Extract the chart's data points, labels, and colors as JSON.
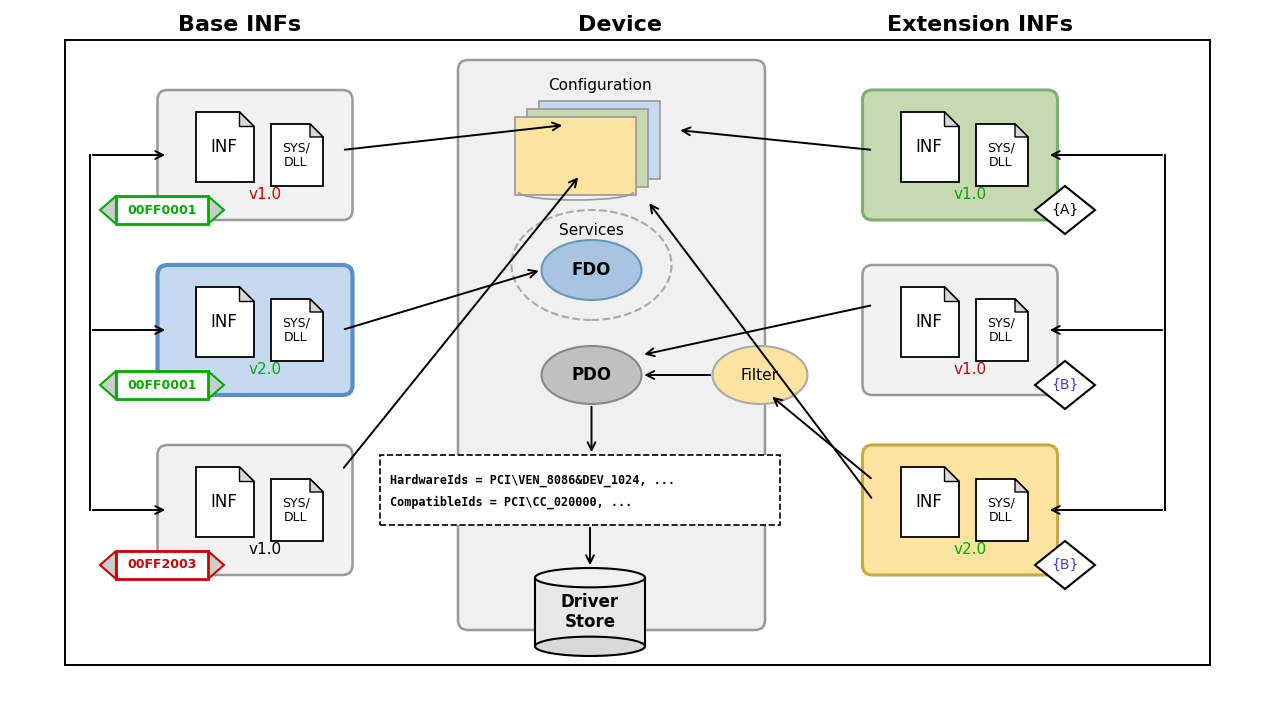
{
  "bg_color": "#ffffff",
  "base_infs_title": "Base INFs",
  "device_title": "Device",
  "extension_infs_title": "Extension INFs",
  "configuration_label": "Configuration",
  "services_label": "Services",
  "fdo_label": "FDO",
  "pdo_label": "PDO",
  "filter_label": "Filter",
  "driver_store_label": "Driver\nStore",
  "hw_ids_line1": "HardwareIds = PCI\\VEN_8086&DEV_1024, ...",
  "hw_ids_line2": "CompatibleIds = PCI\\CC_020000, ...",
  "inf_label": "INF",
  "sys_dll_label": "SYS/\nDLL",
  "base_box1_version": "v1.0",
  "base_box1_rank": "00FF0001",
  "base_box2_version": "v2.0",
  "base_box2_rank": "00FF0001",
  "base_box3_version": "v1.0",
  "base_box3_rank": "00FF2003",
  "ext_box1_version": "v1.0",
  "ext_box1_id": "{A}",
  "ext_box2_version": "v1.0",
  "ext_box2_id": "{B}",
  "ext_box3_version": "v2.0",
  "ext_box3_id": "{B}",
  "green_color": "#00aa00",
  "red_color": "#cc0000",
  "blue_color": "#4444cc",
  "black_color": "#000000",
  "base_box1_bg": "#f2f2f2",
  "base_box2_bg": "#c5d9f1",
  "base_box3_bg": "#f2f2f2",
  "ext_box1_bg": "#c6d9b0",
  "ext_box2_bg": "#f2f2f2",
  "ext_box3_bg": "#fce4a0",
  "fdo_color": "#a8c4e0",
  "pdo_color": "#c0c0c0",
  "filter_color": "#fce4a0",
  "config_colors": [
    "#c5d9f1",
    "#c6d9b0",
    "#fce4a0"
  ],
  "base_box2_border": "#5a8fc8",
  "ext_box1_border": "#7ab070",
  "ext_box3_border": "#c8a840",
  "gray_border": "#999999",
  "rank1_text_color": "#00aa00",
  "rank1_border_color": "#00aa00",
  "rank2_text_color": "#00aa00",
  "rank2_border_color": "#00aa00",
  "rank3_text_color": "#cc0000",
  "rank3_border_color": "#cc0000"
}
